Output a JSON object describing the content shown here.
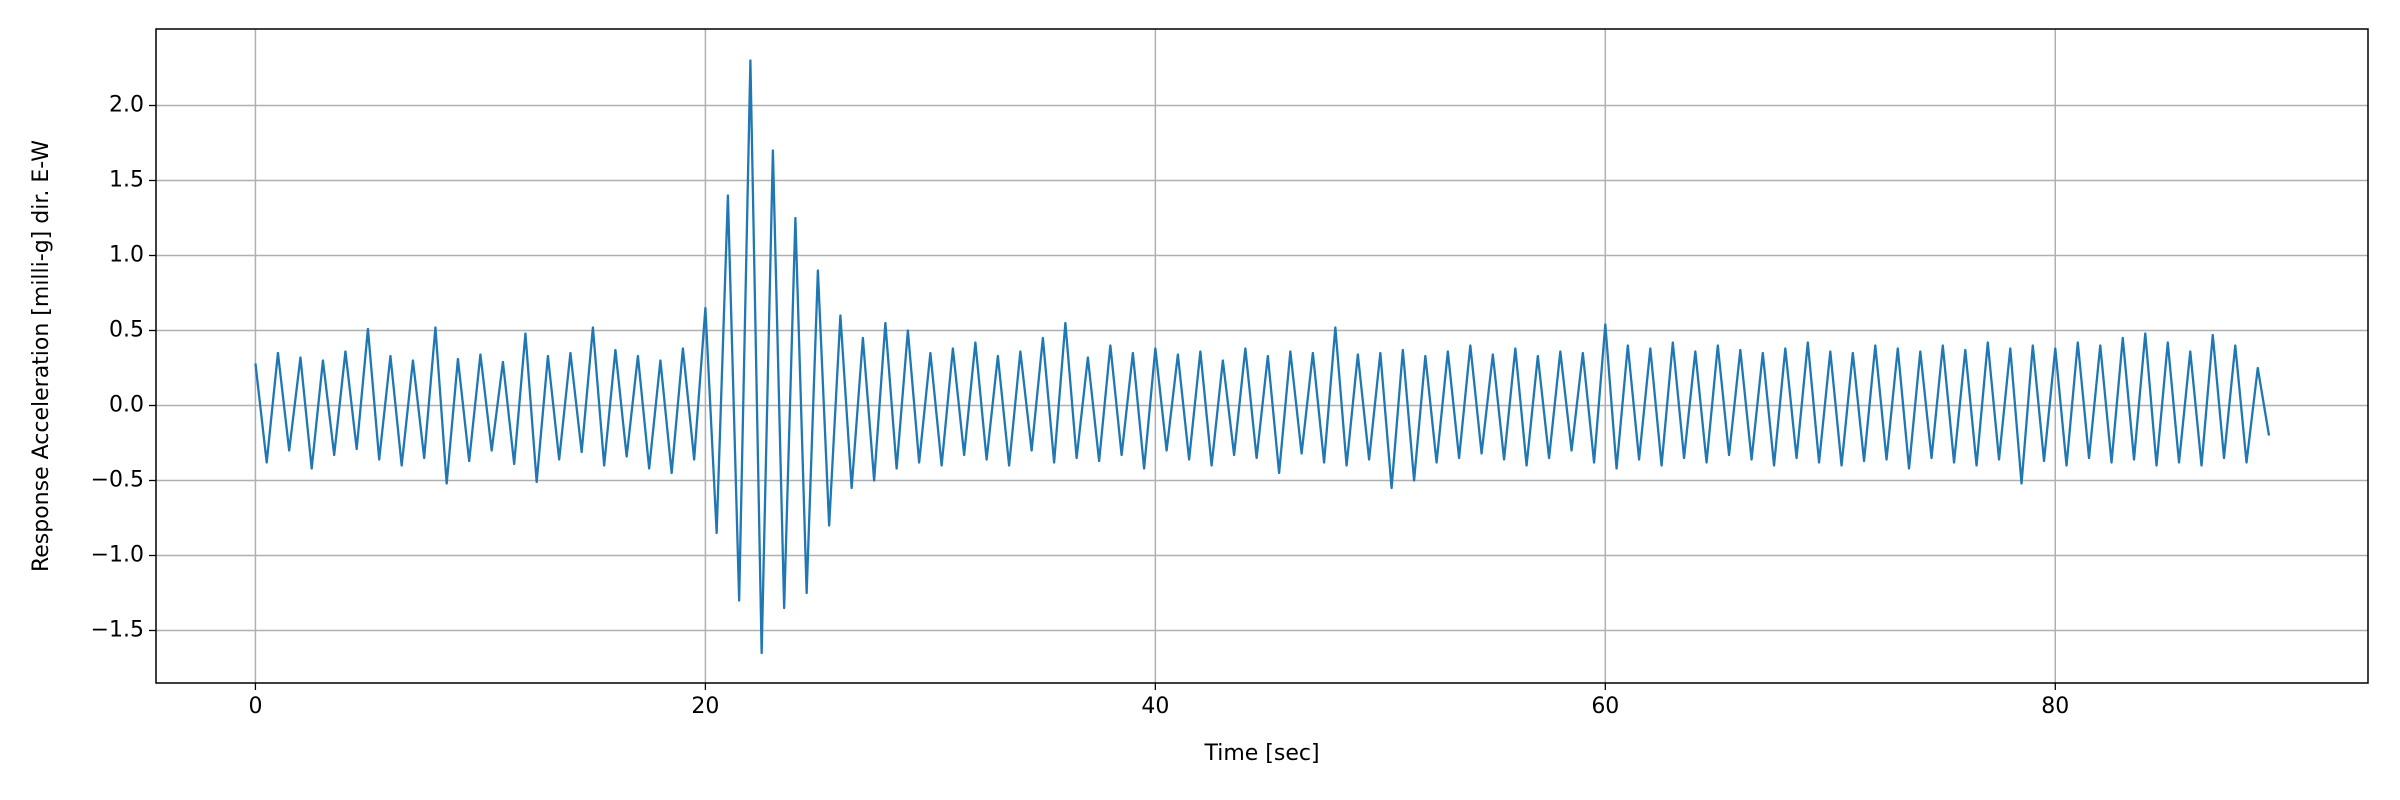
{
  "chart_data": {
    "type": "line",
    "x_label": "Time [sec]",
    "y_label": "Response Acceleration [milli-g] dir. E-W",
    "xlim": [
      -4.42,
      93.9
    ],
    "ylim": [
      -1.85,
      2.51
    ],
    "xticks": [
      0,
      20,
      40,
      60,
      80
    ],
    "yticks": [
      {
        "value": -1.5,
        "label": "−1.5"
      },
      {
        "value": -1.0,
        "label": "−1.0"
      },
      {
        "value": -0.5,
        "label": "−0.5"
      },
      {
        "value": 0,
        "label": "0.0"
      },
      {
        "value": 0.5,
        "label": "0.5"
      },
      {
        "value": 1.0,
        "label": "1.0"
      },
      {
        "value": 1.5,
        "label": "1.5"
      },
      {
        "value": 2.0,
        "label": "2.0"
      }
    ],
    "grid": true,
    "x": [
      0,
      0.5,
      1,
      1.5,
      2,
      2.5,
      3,
      3.5,
      4,
      4.5,
      5,
      5.5,
      6,
      6.5,
      7,
      7.5,
      8,
      8.5,
      9,
      9.5,
      10,
      10.5,
      11,
      11.5,
      12,
      12.5,
      13,
      13.5,
      14,
      14.5,
      15,
      15.5,
      16,
      16.5,
      17,
      17.5,
      18,
      18.5,
      19,
      19.5,
      20,
      20.5,
      21,
      21.5,
      22,
      22.5,
      23,
      23.5,
      24,
      24.5,
      25,
      25.5,
      26,
      26.5,
      27,
      27.5,
      28,
      28.5,
      29,
      29.5,
      30,
      30.5,
      31,
      31.5,
      32,
      32.5,
      33,
      33.5,
      34,
      34.5,
      35,
      35.5,
      36,
      36.5,
      37,
      37.5,
      38,
      38.5,
      39,
      39.5,
      40,
      40.5,
      41,
      41.5,
      42,
      42.5,
      43,
      43.5,
      44,
      44.5,
      45,
      45.5,
      46,
      46.5,
      47,
      47.5,
      48,
      48.5,
      49,
      49.5,
      50,
      50.5,
      51,
      51.5,
      52,
      52.5,
      53,
      53.5,
      54,
      54.5,
      55,
      55.5,
      56,
      56.5,
      57,
      57.5,
      58,
      58.5,
      59,
      59.5,
      60,
      60.5,
      61,
      61.5,
      62,
      62.5,
      63,
      63.5,
      64,
      64.5,
      65,
      65.5,
      66,
      66.5,
      67,
      67.5,
      68,
      68.5,
      69,
      69.5,
      70,
      70.5,
      71,
      71.5,
      72,
      72.5,
      73,
      73.5,
      74,
      74.5,
      75,
      75.5,
      76,
      76.5,
      77,
      77.5,
      78,
      78.5,
      79,
      79.5,
      80,
      80.5,
      81,
      81.5,
      82,
      82.5,
      83,
      83.5,
      84,
      84.5,
      85,
      85.5,
      86,
      86.5,
      87,
      87.5,
      88,
      88.5,
      89,
      89.5
    ],
    "series": [
      {
        "color": "#1f77b4",
        "values": [
          0.28,
          -0.38,
          0.35,
          -0.3,
          0.32,
          -0.42,
          0.3,
          -0.33,
          0.36,
          -0.29,
          0.51,
          -0.36,
          0.33,
          -0.4,
          0.3,
          -0.35,
          0.52,
          -0.52,
          0.31,
          -0.37,
          0.34,
          -0.3,
          0.29,
          -0.39,
          0.48,
          -0.51,
          0.33,
          -0.36,
          0.35,
          -0.31,
          0.52,
          -0.4,
          0.37,
          -0.34,
          0.33,
          -0.42,
          0.3,
          -0.45,
          0.38,
          -0.36,
          0.65,
          -0.85,
          1.4,
          -1.3,
          2.3,
          -1.65,
          1.7,
          -1.35,
          1.25,
          -1.25,
          0.9,
          -0.8,
          0.6,
          -0.55,
          0.45,
          -0.5,
          0.55,
          -0.42,
          0.5,
          -0.38,
          0.35,
          -0.4,
          0.38,
          -0.33,
          0.42,
          -0.36,
          0.33,
          -0.4,
          0.36,
          -0.3,
          0.45,
          -0.38,
          0.55,
          -0.35,
          0.32,
          -0.37,
          0.4,
          -0.33,
          0.35,
          -0.42,
          0.38,
          -0.3,
          0.34,
          -0.36,
          0.36,
          -0.4,
          0.3,
          -0.33,
          0.38,
          -0.35,
          0.33,
          -0.45,
          0.36,
          -0.32,
          0.35,
          -0.38,
          0.52,
          -0.4,
          0.34,
          -0.36,
          0.35,
          -0.55,
          0.37,
          -0.5,
          0.33,
          -0.38,
          0.36,
          -0.35,
          0.4,
          -0.32,
          0.34,
          -0.36,
          0.38,
          -0.4,
          0.33,
          -0.35,
          0.36,
          -0.3,
          0.35,
          -0.38,
          0.54,
          -0.42,
          0.4,
          -0.36,
          0.38,
          -0.4,
          0.42,
          -0.35,
          0.36,
          -0.38,
          0.4,
          -0.33,
          0.37,
          -0.36,
          0.35,
          -0.4,
          0.38,
          -0.35,
          0.42,
          -0.38,
          0.36,
          -0.4,
          0.35,
          -0.37,
          0.4,
          -0.36,
          0.38,
          -0.42,
          0.36,
          -0.35,
          0.4,
          -0.38,
          0.37,
          -0.4,
          0.42,
          -0.36,
          0.38,
          -0.52,
          0.4,
          -0.37,
          0.38,
          -0.4,
          0.42,
          -0.35,
          0.4,
          -0.38,
          0.45,
          -0.36,
          0.48,
          -0.4,
          0.42,
          -0.38,
          0.36,
          -0.4,
          0.47,
          -0.35,
          0.4,
          -0.38,
          0.25,
          -0.2
        ]
      }
    ]
  }
}
